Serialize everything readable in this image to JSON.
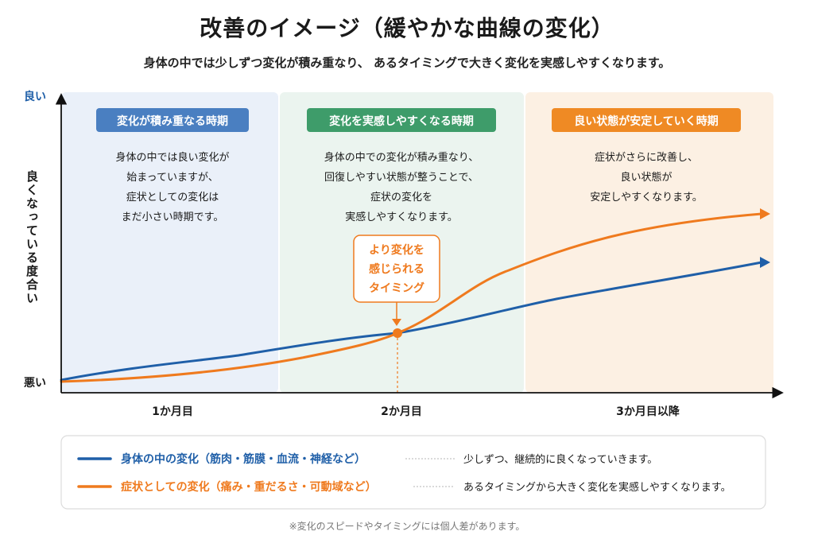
{
  "header": {
    "title": "改善のイメージ（緩やかな曲線の変化）",
    "subtitle": "身体の中では少しずつ変化が積み重なり、 あるタイミングで大きく変化を実感しやすくなります。"
  },
  "axis": {
    "y_top": "良い",
    "y_bottom": "悪い",
    "y_label": "良くなっている度合い",
    "x_ticks": [
      "1か月目",
      "2か月目",
      "3か月目以降"
    ]
  },
  "phases": [
    {
      "badge": "変化が積み重なる時期",
      "lines": [
        "身体の中では良い変化が",
        "始まっていますが、",
        "症状としての変化は",
        "まだ小さい時期です。"
      ],
      "bg": "#eaf0f9",
      "badge_color": "#4a7fc1"
    },
    {
      "badge": "変化を実感しやすくなる時期",
      "lines": [
        "身体の中での変化が積み重なり、",
        "回復しやすい状態が整うことで、",
        "症状の変化を",
        "実感しやすくなります。"
      ],
      "bg": "#ebf4ef",
      "badge_color": "#3e9c6a"
    },
    {
      "badge": "良い状態が安定していく時期",
      "lines": [
        "症状がさらに改善し、",
        "良い状態が",
        "安定しやすくなります。"
      ],
      "bg": "#fcf0e3",
      "badge_color": "#ef8a24"
    }
  ],
  "callout": {
    "lines": [
      "より変化を",
      "感じられる",
      "タイミング"
    ]
  },
  "legend": [
    {
      "name": "身体の中の変化（筋肉・筋膜・血流・神経など）",
      "desc": "少しずつ、継続的に良くなっていきます。",
      "color": "#1f5fa8"
    },
    {
      "name": "症状としての変化（痛み・重だるさ・可動域など）",
      "desc": "あるタイミングから大きく変化を実感しやすくなります。",
      "color": "#ef7a1e"
    }
  ],
  "footnote": "※変化のスピードやタイミングには個人差があります。"
}
